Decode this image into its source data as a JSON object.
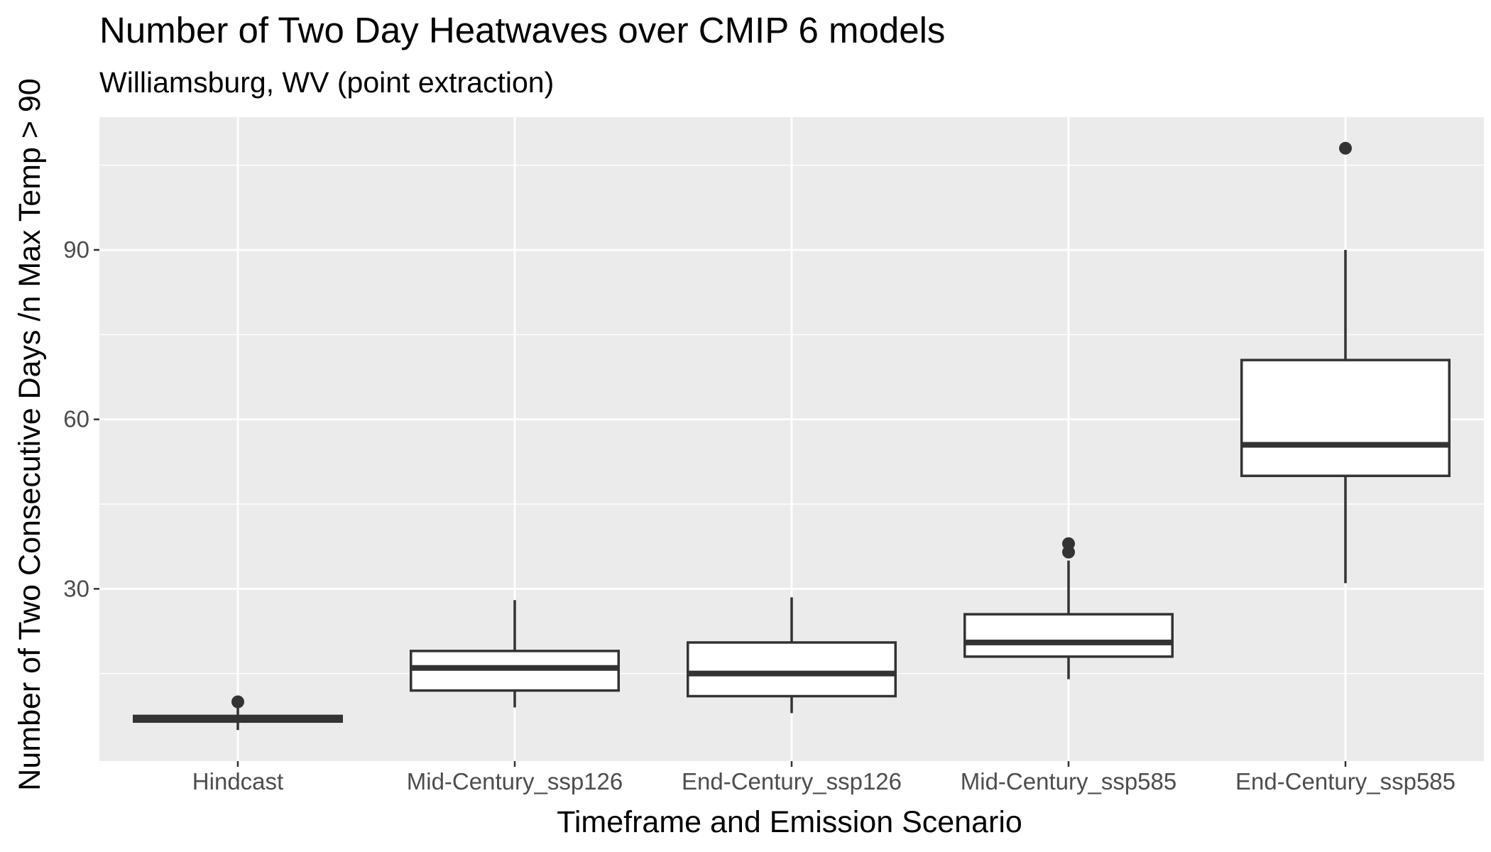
{
  "chart_data": {
    "type": "box",
    "title": "Number of Two Day Heatwaves over CMIP 6 models",
    "subtitle": "Williamsburg, WV (point extraction)",
    "xlabel": "Timeframe and Emission Scenario",
    "ylabel": "Number of Two Consecutive Days /n Max Temp > 90",
    "ylim": [
      -0.5,
      113.5
    ],
    "yticks": [
      30,
      60,
      90
    ],
    "y_minor_ticks": [
      15,
      45,
      75,
      105
    ],
    "grid": true,
    "legend": "none",
    "panel_background": "#ebebeb",
    "grid_color": "#ffffff",
    "box_fill": "#ffffff",
    "line_color": "#333333",
    "categories": [
      "Hindcast",
      "Mid-Century_ssp126",
      "End-Century_ssp126",
      "Mid-Century_ssp585",
      "End-Century_ssp585"
    ],
    "boxes": [
      {
        "category": "Hindcast",
        "whisker_low": 5,
        "q1": 6.5,
        "median": 7,
        "q3": 7.5,
        "whisker_high": 9,
        "outliers": [
          10
        ]
      },
      {
        "category": "Mid-Century_ssp126",
        "whisker_low": 9,
        "q1": 12,
        "median": 16,
        "q3": 19,
        "whisker_high": 28,
        "outliers": []
      },
      {
        "category": "End-Century_ssp126",
        "whisker_low": 8,
        "q1": 11,
        "median": 15,
        "q3": 20.5,
        "whisker_high": 28.5,
        "outliers": []
      },
      {
        "category": "Mid-Century_ssp585",
        "whisker_low": 14,
        "q1": 18,
        "median": 20.5,
        "q3": 25.5,
        "whisker_high": 35,
        "outliers": [
          36.5,
          38
        ]
      },
      {
        "category": "End-Century_ssp585",
        "whisker_low": 31,
        "q1": 50,
        "median": 55.5,
        "q3": 70.5,
        "whisker_high": 90,
        "outliers": [
          108
        ]
      }
    ]
  }
}
